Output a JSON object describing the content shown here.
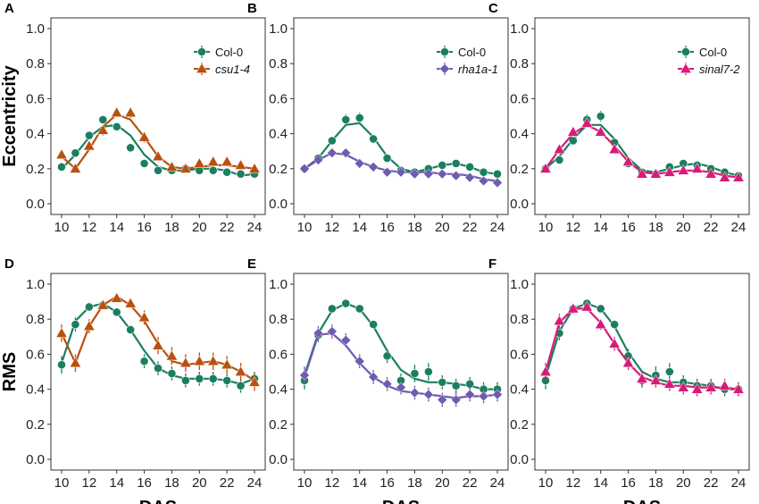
{
  "colors": {
    "col0": "#1B7F5F",
    "csu": "#B8510F",
    "rha": "#6F5BB0",
    "sinal": "#D81B79"
  },
  "chart_data": [
    {
      "type": "scatter",
      "panel": "A",
      "ylabel": "Eccentricity",
      "xlabel": "",
      "xlim": [
        10,
        24
      ],
      "ylim": [
        0.0,
        1.0
      ],
      "xticks": [
        "10",
        "12",
        "14",
        "16",
        "18",
        "20",
        "22",
        "24"
      ],
      "yticks": [
        "0.0",
        "0.2",
        "0.4",
        "0.6",
        "0.8",
        "1.0"
      ],
      "show_legend": true,
      "series": [
        {
          "name": "Col-0",
          "italic": false,
          "color": "col0",
          "marker": "circle",
          "x": [
            10,
            11,
            12,
            13,
            14,
            15,
            16,
            17,
            18,
            19,
            20,
            21,
            22,
            23,
            24
          ],
          "values": [
            0.21,
            0.29,
            0.39,
            0.48,
            0.44,
            0.32,
            0.23,
            0.19,
            0.19,
            0.2,
            0.19,
            0.19,
            0.18,
            0.17,
            0.17
          ],
          "err": [
            0.02,
            0.02,
            0.02,
            0.02,
            0.02,
            0.02,
            0.02,
            0.01,
            0.01,
            0.01,
            0.01,
            0.01,
            0.01,
            0.01,
            0.01
          ],
          "fit": [
            0.2,
            0.28,
            0.38,
            0.44,
            0.45,
            0.39,
            0.28,
            0.21,
            0.19,
            0.19,
            0.2,
            0.2,
            0.19,
            0.16,
            0.17
          ]
        },
        {
          "name": "csu1-4",
          "italic": true,
          "color": "csu",
          "marker": "triangle",
          "x": [
            10,
            11,
            12,
            13,
            14,
            15,
            16,
            17,
            18,
            19,
            20,
            21,
            22,
            23,
            24
          ],
          "values": [
            0.28,
            0.2,
            0.33,
            0.42,
            0.52,
            0.52,
            0.38,
            0.27,
            0.21,
            0.2,
            0.23,
            0.24,
            0.24,
            0.22,
            0.2
          ],
          "err": [
            0.02,
            0.02,
            0.02,
            0.03,
            0.02,
            0.03,
            0.03,
            0.02,
            0.02,
            0.02,
            0.02,
            0.02,
            0.02,
            0.02,
            0.02
          ],
          "fit": [
            0.27,
            0.2,
            0.31,
            0.44,
            0.51,
            0.48,
            0.38,
            0.27,
            0.21,
            0.2,
            0.21,
            0.22,
            0.22,
            0.21,
            0.2
          ]
        }
      ]
    },
    {
      "type": "scatter",
      "panel": "B",
      "ylabel": "",
      "xlabel": "",
      "xlim": [
        10,
        24
      ],
      "ylim": [
        0.0,
        1.0
      ],
      "xticks": [
        "10",
        "12",
        "14",
        "16",
        "18",
        "20",
        "22",
        "24"
      ],
      "yticks": [
        "0.0",
        "0.2",
        "0.4",
        "0.6",
        "0.8",
        "1.0"
      ],
      "show_legend": true,
      "series": [
        {
          "name": "Col-0",
          "italic": false,
          "color": "col0",
          "marker": "circle",
          "x": [
            10,
            11,
            12,
            13,
            14,
            15,
            16,
            17,
            18,
            19,
            20,
            21,
            22,
            23,
            24
          ],
          "values": [
            0.2,
            0.26,
            0.36,
            0.48,
            0.49,
            0.37,
            0.26,
            0.19,
            0.18,
            0.2,
            0.22,
            0.23,
            0.21,
            0.18,
            0.17
          ],
          "err": [
            0.01,
            0.02,
            0.02,
            0.03,
            0.03,
            0.02,
            0.02,
            0.01,
            0.01,
            0.01,
            0.01,
            0.01,
            0.01,
            0.01,
            0.01
          ],
          "fit": [
            0.2,
            0.26,
            0.36,
            0.45,
            0.46,
            0.38,
            0.27,
            0.2,
            0.18,
            0.2,
            0.22,
            0.23,
            0.21,
            0.18,
            0.17
          ]
        },
        {
          "name": "rha1a-1",
          "italic": true,
          "color": "rha",
          "marker": "diamond",
          "x": [
            10,
            11,
            12,
            13,
            14,
            15,
            16,
            17,
            18,
            19,
            20,
            21,
            22,
            23,
            24
          ],
          "values": [
            0.2,
            0.25,
            0.29,
            0.29,
            0.23,
            0.21,
            0.18,
            0.18,
            0.17,
            0.17,
            0.17,
            0.16,
            0.15,
            0.13,
            0.12
          ],
          "err": [
            0.01,
            0.02,
            0.02,
            0.02,
            0.02,
            0.01,
            0.01,
            0.01,
            0.01,
            0.01,
            0.01,
            0.01,
            0.01,
            0.01,
            0.01
          ],
          "fit": [
            0.2,
            0.25,
            0.29,
            0.28,
            0.24,
            0.21,
            0.19,
            0.18,
            0.18,
            0.18,
            0.17,
            0.17,
            0.16,
            0.14,
            0.13
          ]
        }
      ]
    },
    {
      "type": "scatter",
      "panel": "C",
      "ylabel": "",
      "xlabel": "",
      "xlim": [
        10,
        24
      ],
      "ylim": [
        0.0,
        1.0
      ],
      "xticks": [
        "10",
        "12",
        "14",
        "16",
        "18",
        "20",
        "22",
        "24"
      ],
      "yticks": [
        "0.0",
        "0.2",
        "0.4",
        "0.6",
        "0.8",
        "1.0"
      ],
      "show_legend": true,
      "series": [
        {
          "name": "Col-0",
          "italic": false,
          "color": "col0",
          "marker": "circle",
          "x": [
            10,
            11,
            12,
            13,
            14,
            15,
            16,
            17,
            18,
            19,
            20,
            21,
            22,
            23,
            24
          ],
          "values": [
            0.2,
            0.25,
            0.36,
            0.48,
            0.5,
            0.35,
            0.23,
            0.18,
            0.17,
            0.21,
            0.23,
            0.22,
            0.2,
            0.18,
            0.16
          ],
          "err": [
            0.01,
            0.02,
            0.02,
            0.03,
            0.03,
            0.02,
            0.02,
            0.01,
            0.01,
            0.01,
            0.01,
            0.01,
            0.01,
            0.01,
            0.01
          ],
          "fit": [
            0.2,
            0.27,
            0.37,
            0.45,
            0.45,
            0.37,
            0.26,
            0.19,
            0.18,
            0.2,
            0.22,
            0.23,
            0.21,
            0.18,
            0.16
          ]
        },
        {
          "name": "sinal7-2",
          "italic": true,
          "color": "sinal",
          "marker": "triangle",
          "x": [
            10,
            11,
            12,
            13,
            14,
            15,
            16,
            17,
            18,
            19,
            20,
            21,
            22,
            23,
            24
          ],
          "values": [
            0.2,
            0.31,
            0.41,
            0.46,
            0.41,
            0.31,
            0.24,
            0.17,
            0.17,
            0.18,
            0.19,
            0.2,
            0.17,
            0.15,
            0.15
          ],
          "err": [
            0.01,
            0.02,
            0.02,
            0.02,
            0.02,
            0.02,
            0.02,
            0.01,
            0.01,
            0.01,
            0.01,
            0.01,
            0.01,
            0.01,
            0.01
          ],
          "fit": [
            0.2,
            0.31,
            0.4,
            0.45,
            0.41,
            0.33,
            0.24,
            0.18,
            0.17,
            0.18,
            0.19,
            0.19,
            0.18,
            0.16,
            0.15
          ]
        }
      ]
    },
    {
      "type": "scatter",
      "panel": "D",
      "ylabel": "RMS",
      "xlabel": "DAS",
      "xlim": [
        10,
        24
      ],
      "ylim": [
        0.0,
        1.0
      ],
      "xticks": [
        "10",
        "12",
        "14",
        "16",
        "18",
        "20",
        "22",
        "24"
      ],
      "yticks": [
        "0.0",
        "0.2",
        "0.4",
        "0.6",
        "0.8",
        "1.0"
      ],
      "show_legend": false,
      "series": [
        {
          "name": "Col-0",
          "italic": false,
          "color": "col0",
          "marker": "circle",
          "x": [
            10,
            11,
            12,
            13,
            14,
            15,
            16,
            17,
            18,
            19,
            20,
            21,
            22,
            23,
            24
          ],
          "values": [
            0.54,
            0.77,
            0.87,
            0.88,
            0.84,
            0.74,
            0.56,
            0.52,
            0.49,
            0.45,
            0.46,
            0.46,
            0.45,
            0.42,
            0.46
          ],
          "err": [
            0.05,
            0.04,
            0.02,
            0.02,
            0.02,
            0.02,
            0.04,
            0.04,
            0.04,
            0.04,
            0.04,
            0.04,
            0.04,
            0.04,
            0.04
          ],
          "fit": [
            0.55,
            0.79,
            0.87,
            0.89,
            0.84,
            0.74,
            0.62,
            0.52,
            0.48,
            0.46,
            0.46,
            0.46,
            0.45,
            0.43,
            0.46
          ]
        },
        {
          "name": "csu1-4",
          "italic": true,
          "color": "csu",
          "marker": "triangle",
          "x": [
            10,
            11,
            12,
            13,
            14,
            15,
            16,
            17,
            18,
            19,
            20,
            21,
            22,
            23,
            24
          ],
          "values": [
            0.72,
            0.55,
            0.76,
            0.88,
            0.92,
            0.89,
            0.81,
            0.65,
            0.59,
            0.55,
            0.56,
            0.56,
            0.54,
            0.5,
            0.44
          ],
          "err": [
            0.05,
            0.05,
            0.04,
            0.02,
            0.02,
            0.02,
            0.04,
            0.05,
            0.05,
            0.05,
            0.05,
            0.05,
            0.05,
            0.05,
            0.05
          ],
          "fit": [
            0.72,
            0.55,
            0.76,
            0.88,
            0.93,
            0.88,
            0.79,
            0.66,
            0.56,
            0.54,
            0.55,
            0.56,
            0.54,
            0.5,
            0.45
          ]
        }
      ]
    },
    {
      "type": "scatter",
      "panel": "E",
      "ylabel": "",
      "xlabel": "DAS",
      "xlim": [
        10,
        24
      ],
      "ylim": [
        0.0,
        1.0
      ],
      "xticks": [
        "10",
        "12",
        "14",
        "16",
        "18",
        "20",
        "22",
        "24"
      ],
      "yticks": [
        "0.0",
        "0.2",
        "0.4",
        "0.6",
        "0.8",
        "1.0"
      ],
      "show_legend": false,
      "series": [
        {
          "name": "Col-0",
          "italic": false,
          "color": "col0",
          "marker": "circle",
          "x": [
            10,
            11,
            12,
            13,
            14,
            15,
            16,
            17,
            18,
            19,
            20,
            21,
            22,
            23,
            24
          ],
          "values": [
            0.45,
            0.71,
            0.86,
            0.89,
            0.86,
            0.77,
            0.59,
            0.45,
            0.49,
            0.5,
            0.44,
            0.42,
            0.43,
            0.4,
            0.4
          ],
          "err": [
            0.05,
            0.04,
            0.02,
            0.02,
            0.02,
            0.02,
            0.04,
            0.04,
            0.05,
            0.05,
            0.04,
            0.04,
            0.04,
            0.04,
            0.04
          ],
          "fit": [
            0.48,
            0.72,
            0.85,
            0.89,
            0.86,
            0.76,
            0.62,
            0.51,
            0.46,
            0.44,
            0.44,
            0.43,
            0.42,
            0.4,
            0.4
          ]
        },
        {
          "name": "rha1a-1",
          "italic": true,
          "color": "rha",
          "marker": "diamond",
          "x": [
            10,
            11,
            12,
            13,
            14,
            15,
            16,
            17,
            18,
            19,
            20,
            21,
            22,
            23,
            24
          ],
          "values": [
            0.48,
            0.72,
            0.73,
            0.68,
            0.56,
            0.47,
            0.43,
            0.41,
            0.38,
            0.37,
            0.34,
            0.34,
            0.37,
            0.36,
            0.37
          ],
          "err": [
            0.05,
            0.04,
            0.04,
            0.04,
            0.04,
            0.04,
            0.04,
            0.04,
            0.04,
            0.04,
            0.04,
            0.04,
            0.04,
            0.04,
            0.04
          ],
          "fit": [
            0.47,
            0.71,
            0.72,
            0.65,
            0.55,
            0.47,
            0.42,
            0.39,
            0.38,
            0.37,
            0.36,
            0.35,
            0.36,
            0.36,
            0.37
          ]
        }
      ]
    },
    {
      "type": "scatter",
      "panel": "F",
      "ylabel": "",
      "xlabel": "DAS",
      "xlim": [
        10,
        24
      ],
      "ylim": [
        0.0,
        1.0
      ],
      "xticks": [
        "10",
        "12",
        "14",
        "16",
        "18",
        "20",
        "22",
        "24"
      ],
      "yticks": [
        "0.0",
        "0.2",
        "0.4",
        "0.6",
        "0.8",
        "1.0"
      ],
      "show_legend": false,
      "series": [
        {
          "name": "Col-0",
          "italic": false,
          "color": "col0",
          "marker": "circle",
          "x": [
            10,
            11,
            12,
            13,
            14,
            15,
            16,
            17,
            18,
            19,
            20,
            21,
            22,
            23,
            24
          ],
          "values": [
            0.45,
            0.72,
            0.86,
            0.89,
            0.86,
            0.77,
            0.59,
            0.45,
            0.48,
            0.5,
            0.44,
            0.42,
            0.42,
            0.4,
            0.4
          ],
          "err": [
            0.05,
            0.04,
            0.02,
            0.02,
            0.02,
            0.02,
            0.04,
            0.04,
            0.05,
            0.05,
            0.04,
            0.04,
            0.04,
            0.04,
            0.04
          ],
          "fit": [
            0.47,
            0.73,
            0.86,
            0.89,
            0.86,
            0.76,
            0.61,
            0.5,
            0.46,
            0.44,
            0.44,
            0.43,
            0.42,
            0.4,
            0.4
          ]
        },
        {
          "name": "sinal7-2",
          "italic": true,
          "color": "sinal",
          "marker": "triangle",
          "x": [
            10,
            11,
            12,
            13,
            14,
            15,
            16,
            17,
            18,
            19,
            20,
            21,
            22,
            23,
            24
          ],
          "values": [
            0.5,
            0.79,
            0.86,
            0.87,
            0.77,
            0.66,
            0.55,
            0.46,
            0.45,
            0.43,
            0.41,
            0.4,
            0.41,
            0.42,
            0.4
          ],
          "err": [
            0.05,
            0.04,
            0.03,
            0.02,
            0.03,
            0.04,
            0.04,
            0.04,
            0.04,
            0.04,
            0.04,
            0.04,
            0.04,
            0.04,
            0.04
          ],
          "fit": [
            0.5,
            0.78,
            0.86,
            0.86,
            0.78,
            0.66,
            0.55,
            0.47,
            0.44,
            0.42,
            0.42,
            0.41,
            0.41,
            0.41,
            0.4
          ]
        }
      ]
    }
  ]
}
